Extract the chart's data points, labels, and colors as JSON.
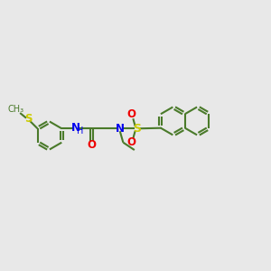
{
  "background_color": "#e8e8e8",
  "bond_color": "#4a7a2a",
  "N_color": "#0000ee",
  "O_color": "#ee0000",
  "S_color": "#cccc00",
  "line_width": 1.5,
  "figsize": [
    3.0,
    3.0
  ],
  "dpi": 100,
  "xlim": [
    0,
    10
  ],
  "ylim": [
    2,
    8
  ]
}
